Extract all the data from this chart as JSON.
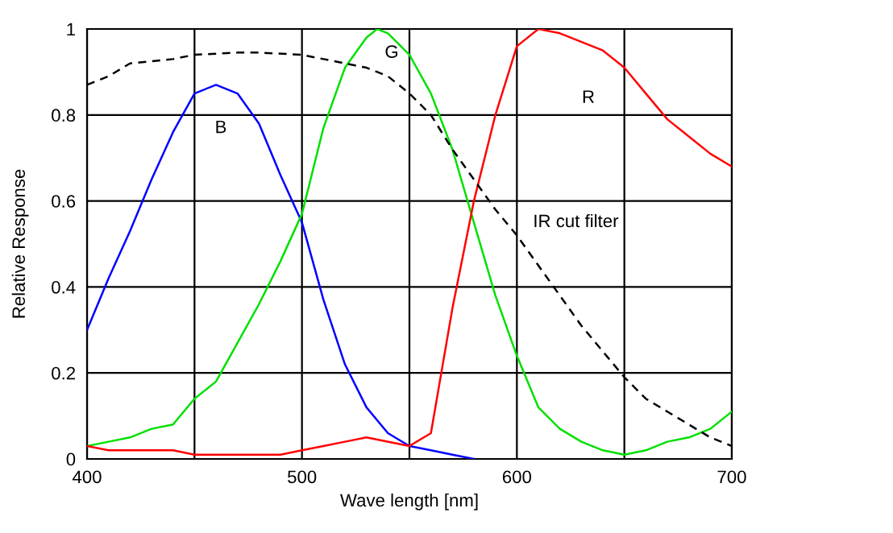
{
  "chart_data": {
    "type": "line",
    "xlabel": "Wave length [nm]",
    "ylabel": "Relative Response",
    "xlim": [
      400,
      700
    ],
    "ylim": [
      0,
      1
    ],
    "xticks": [
      400,
      {
        "value": 450,
        "label": null
      },
      500,
      {
        "value": 550,
        "label": null
      },
      600,
      {
        "value": 650,
        "label": null
      },
      700
    ],
    "yticks": [
      0,
      0.2,
      0.4,
      0.6,
      0.8,
      1
    ],
    "grid": true,
    "legend": false,
    "marker": "none",
    "series": [
      {
        "name": "B",
        "color": "#0000ff",
        "line_style": "solid",
        "x": [
          400,
          410,
          420,
          430,
          440,
          450,
          460,
          470,
          480,
          490,
          500,
          510,
          520,
          530,
          540,
          550,
          560,
          570,
          580
        ],
        "values": [
          0.3,
          0.42,
          0.53,
          0.65,
          0.76,
          0.85,
          0.87,
          0.85,
          0.78,
          0.66,
          0.55,
          0.37,
          0.22,
          0.12,
          0.06,
          0.03,
          0.02,
          0.01,
          0.0
        ]
      },
      {
        "name": "G",
        "color": "#00e000",
        "line_style": "solid",
        "x": [
          400,
          410,
          420,
          430,
          440,
          450,
          460,
          470,
          480,
          490,
          500,
          510,
          520,
          530,
          535,
          540,
          550,
          560,
          570,
          580,
          590,
          600,
          610,
          620,
          630,
          640,
          650,
          660,
          670,
          680,
          690,
          700
        ],
        "values": [
          0.03,
          0.04,
          0.05,
          0.07,
          0.08,
          0.14,
          0.18,
          0.27,
          0.36,
          0.46,
          0.57,
          0.77,
          0.91,
          0.98,
          1.0,
          0.99,
          0.94,
          0.85,
          0.72,
          0.55,
          0.38,
          0.24,
          0.12,
          0.07,
          0.04,
          0.02,
          0.01,
          0.02,
          0.04,
          0.05,
          0.07,
          0.11
        ]
      },
      {
        "name": "R",
        "color": "#ff0000",
        "line_style": "solid",
        "x": [
          400,
          410,
          440,
          450,
          490,
          500,
          510,
          520,
          530,
          550,
          560,
          570,
          580,
          590,
          600,
          610,
          620,
          640,
          650,
          660,
          670,
          680,
          690,
          700
        ],
        "values": [
          0.03,
          0.02,
          0.02,
          0.01,
          0.01,
          0.02,
          0.03,
          0.04,
          0.05,
          0.03,
          0.06,
          0.35,
          0.6,
          0.8,
          0.96,
          1.0,
          0.99,
          0.95,
          0.91,
          0.85,
          0.79,
          0.75,
          0.71,
          0.68
        ]
      },
      {
        "name": "IR cut filter",
        "color": "#000000",
        "line_style": "dashed",
        "x": [
          400,
          410,
          420,
          440,
          450,
          470,
          480,
          500,
          510,
          520,
          530,
          540,
          550,
          560,
          570,
          580,
          590,
          600,
          610,
          620,
          630,
          640,
          650,
          660,
          670,
          680,
          690,
          700
        ],
        "values": [
          0.87,
          0.89,
          0.92,
          0.93,
          0.94,
          0.945,
          0.945,
          0.94,
          0.93,
          0.92,
          0.91,
          0.89,
          0.85,
          0.8,
          0.72,
          0.65,
          0.58,
          0.52,
          0.45,
          0.38,
          0.31,
          0.25,
          0.19,
          0.14,
          0.11,
          0.08,
          0.05,
          0.03
        ]
      }
    ]
  }
}
